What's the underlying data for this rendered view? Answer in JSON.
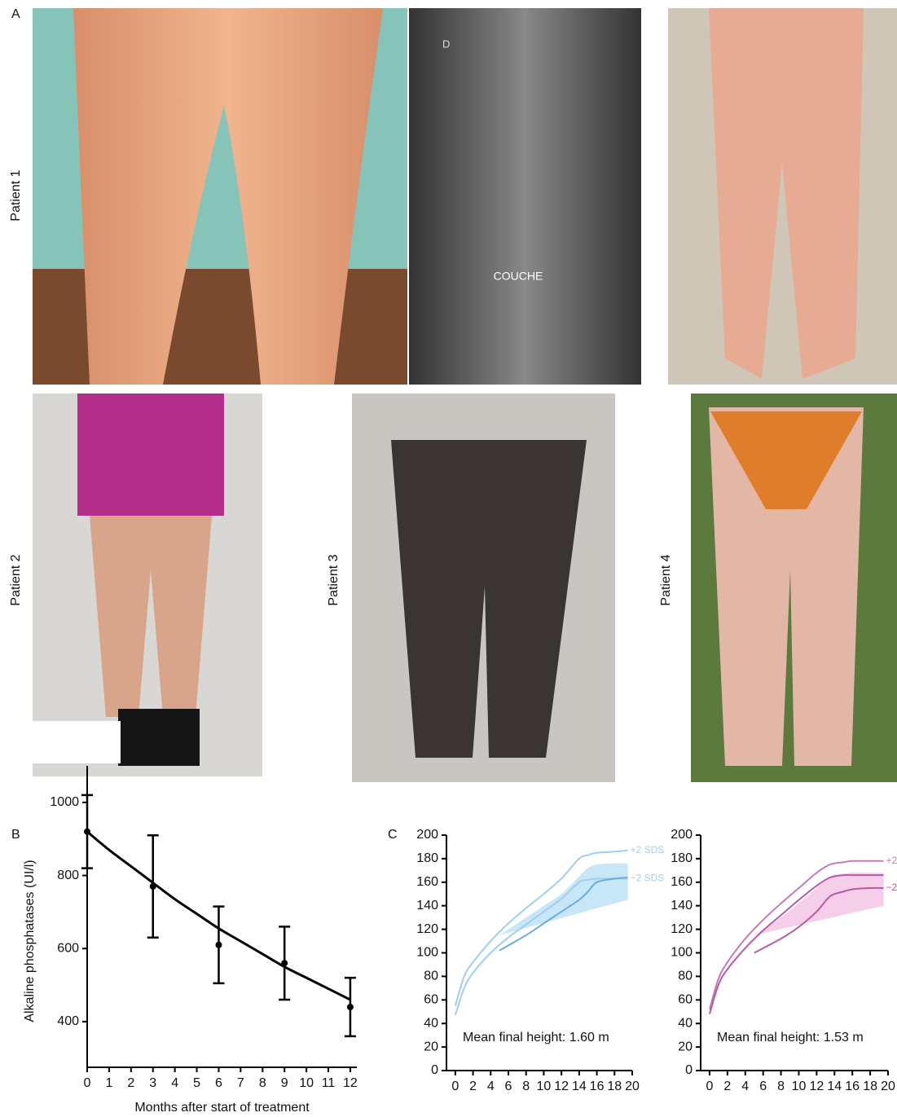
{
  "panels": {
    "a_label": "A",
    "b_label": "B",
    "c_label": "C",
    "patients": [
      "Patient 1",
      "Patient 2",
      "Patient 3",
      "Patient 4"
    ],
    "xray_marks": [
      "D",
      "COUCHE"
    ]
  },
  "chart_data": [
    {
      "type": "line",
      "xlabel": "Months after start of treatment",
      "ylabel": "Alkaline phosphatases (UI/l)",
      "xlim": [
        0,
        12.3
      ],
      "xticks": [
        0,
        1,
        2,
        3,
        4,
        5,
        6,
        7,
        8,
        9,
        10,
        11,
        12
      ],
      "ylim": [
        275,
        1100
      ],
      "yticks": [
        400,
        600,
        800,
        1000
      ],
      "series": [
        {
          "color": "#000000",
          "markers": true,
          "line": false,
          "x": [
            0,
            3,
            6,
            9,
            12
          ],
          "values": [
            920,
            770,
            610,
            560,
            440
          ],
          "errors": [
            100,
            140,
            105,
            100,
            80
          ]
        },
        {
          "color": "#000000",
          "markers": false,
          "line": true,
          "x": [
            0,
            1,
            2,
            3,
            4,
            5,
            6,
            7,
            8,
            9,
            10,
            11,
            12
          ],
          "values": [
            920,
            870,
            825,
            780,
            735,
            695,
            655,
            620,
            585,
            550,
            520,
            490,
            460
          ]
        }
      ]
    },
    {
      "type": "line",
      "annotation": "Mean final height: 1.60 m",
      "xlim": [
        -1,
        20
      ],
      "xticks": [
        0,
        2,
        4,
        6,
        8,
        10,
        12,
        14,
        16,
        18,
        20
      ],
      "ylim": [
        0,
        200
      ],
      "yticks": [
        0,
        20,
        40,
        60,
        80,
        100,
        120,
        140,
        160,
        180,
        200
      ],
      "band": {
        "color": "#bde2f5",
        "x": [
          5,
          8,
          10,
          12,
          14,
          15,
          16,
          18,
          19.5
        ],
        "low": [
          88,
          100,
          110,
          118,
          125,
          140,
          145,
          145,
          145
        ],
        "high": [
          115,
          130,
          140,
          150,
          165,
          172,
          175,
          176,
          176
        ]
      },
      "series": [
        {
          "name": "+2 SDS",
          "color": "#9fcff0",
          "markers": false,
          "line": true,
          "x": [
            0,
            1,
            2,
            4,
            6,
            8,
            10,
            12,
            14,
            15,
            16,
            18,
            19.5
          ],
          "values": [
            55,
            80,
            92,
            110,
            125,
            138,
            150,
            163,
            180,
            183,
            185,
            186,
            187
          ]
        },
        {
          "name": "−2 SDS",
          "color": "#9fcff0",
          "markers": false,
          "line": true,
          "x": [
            0,
            1,
            2,
            4,
            6,
            8,
            10,
            12,
            14,
            15,
            16,
            18,
            19.5
          ],
          "values": [
            47,
            70,
            83,
            100,
            113,
            124,
            135,
            146,
            160,
            162,
            163,
            163,
            163
          ]
        },
        {
          "color": "#6aaede",
          "markers": false,
          "line": true,
          "x": [
            5,
            8,
            10,
            12,
            14,
            15,
            16,
            18,
            19.5
          ],
          "values": [
            102,
            115,
            125,
            135,
            145,
            152,
            160,
            163,
            164
          ]
        }
      ]
    },
    {
      "type": "line",
      "annotation": "Mean final height: 1.53 m",
      "xlim": [
        -1,
        20
      ],
      "xticks": [
        0,
        2,
        4,
        6,
        8,
        10,
        12,
        14,
        16,
        18,
        20
      ],
      "ylim": [
        0,
        200
      ],
      "yticks": [
        0,
        20,
        40,
        60,
        80,
        100,
        120,
        140,
        160,
        180,
        200
      ],
      "band": {
        "color": "#f3c6e5",
        "x": [
          5,
          8,
          10,
          12,
          13.5,
          15,
          16,
          18,
          19.5
        ],
        "low": [
          92,
          105,
          115,
          125,
          138,
          140,
          140,
          140,
          140
        ],
        "high": [
          115,
          130,
          142,
          155,
          165,
          167,
          168,
          168,
          168
        ]
      },
      "series": [
        {
          "name": "+2",
          "color": "#c47ab5",
          "markers": false,
          "line": true,
          "x": [
            0,
            1,
            2,
            4,
            6,
            8,
            10,
            12,
            13.5,
            15,
            16,
            18,
            19.5
          ],
          "values": [
            52,
            78,
            92,
            112,
            128,
            142,
            155,
            168,
            175,
            177,
            178,
            178,
            178
          ]
        },
        {
          "color": "#b95aa6",
          "markers": false,
          "line": true,
          "x": [
            0,
            1,
            2,
            4,
            6,
            8,
            10,
            12,
            13.5,
            15,
            16,
            18,
            19.5
          ],
          "values": [
            48,
            73,
            86,
            104,
            119,
            132,
            145,
            157,
            164,
            166,
            166,
            166,
            166
          ]
        },
        {
          "name": "−2",
          "color": "#b95aa6",
          "markers": false,
          "line": true,
          "x": [
            5,
            8,
            10,
            12,
            13.5,
            15,
            16,
            18,
            19.5
          ],
          "values": [
            100,
            112,
            122,
            135,
            148,
            152,
            154,
            155,
            155
          ]
        }
      ]
    }
  ]
}
